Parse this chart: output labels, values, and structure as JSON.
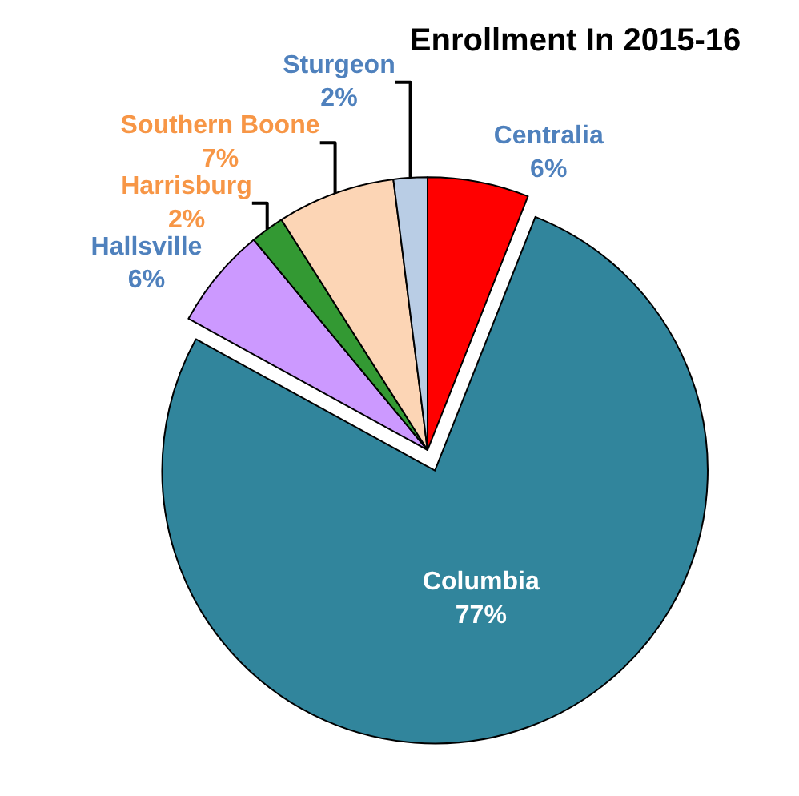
{
  "chart_data": {
    "type": "pie",
    "title": "Enrollment In 2015-16",
    "categories": [
      "Centralia",
      "Columbia",
      "Hallsville",
      "Harrisburg",
      "Southern Boone",
      "Sturgeon"
    ],
    "values": [
      6,
      77,
      6,
      2,
      7,
      2
    ],
    "colors": [
      "#ff0000",
      "#31859c",
      "#cc99ff",
      "#339933",
      "#fcd5b5",
      "#b9cde5"
    ],
    "value_labels": [
      "6%",
      "77%",
      "6%",
      "2%",
      "7%",
      "2%"
    ],
    "legend": false
  }
}
